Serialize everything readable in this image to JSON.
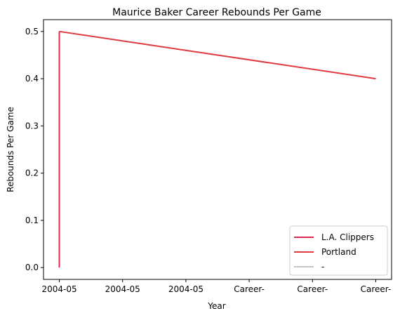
{
  "chart_data": {
    "type": "line",
    "title": "Maurice Baker Career Rebounds Per Game",
    "xlabel": "Year",
    "ylabel": "Rebounds Per Game",
    "x_ticks": [
      "2004-05",
      "2004-05",
      "2004-05",
      "Career-",
      "Career-",
      "Career-"
    ],
    "y_ticks": [
      "0.0",
      "0.1",
      "0.2",
      "0.3",
      "0.4",
      "0.5"
    ],
    "y_tick_values": [
      0.0,
      0.1,
      0.2,
      0.3,
      0.4,
      0.5
    ],
    "ylim": [
      -0.025,
      0.525
    ],
    "xlim": [
      -0.25,
      5.25
    ],
    "grid": false,
    "legend_position": "lower-right",
    "series": [
      {
        "name": "L.A. Clippers",
        "color": "#dc2a4e",
        "x": [
          0,
          0
        ],
        "y": [
          0.0,
          0.5
        ]
      },
      {
        "name": "Portland",
        "color": "#e03a3e",
        "x": [
          0,
          5
        ],
        "y": [
          0.5,
          0.4
        ]
      },
      {
        "name": "-",
        "color": "#c4c4c4",
        "x": [],
        "y": []
      }
    ]
  }
}
